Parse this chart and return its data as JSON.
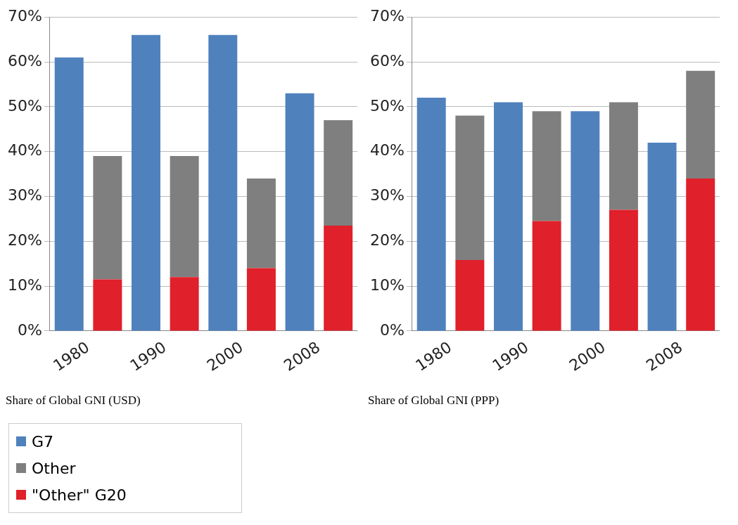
{
  "chart_data": [
    {
      "type": "bar",
      "title": "Share of Global GNI (USD)",
      "categories": [
        "1980",
        null,
        "1990",
        null,
        "2000",
        null,
        "2008",
        null
      ],
      "stacked": true,
      "legend": "bottom left",
      "grid": "y",
      "ylim": [
        0,
        70
      ],
      "yticks": [
        {
          "value": 0,
          "label": "0%"
        },
        {
          "value": 10,
          "label": "10%"
        },
        {
          "value": 20,
          "label": "20%"
        },
        {
          "value": 30,
          "label": "30%"
        },
        {
          "value": 40,
          "label": "40%"
        },
        {
          "value": 50,
          "label": "50%"
        },
        {
          "value": 60,
          "label": "60%"
        },
        {
          "value": 70,
          "label": "70%"
        }
      ],
      "series": [
        {
          "name": "G7",
          "color": "#4f81bd",
          "values": [
            61,
            null,
            66,
            null,
            66,
            null,
            53,
            null
          ]
        },
        {
          "name": "\"Other\" G20",
          "color": "#e0202a",
          "values": [
            null,
            11.5,
            null,
            12,
            null,
            14,
            null,
            23.5
          ]
        },
        {
          "name": "Other",
          "color": "#7f7f7f",
          "values": [
            null,
            27.5,
            null,
            27,
            null,
            20,
            null,
            23.5
          ]
        }
      ]
    },
    {
      "type": "bar",
      "title": "Share of Global GNI (PPP)",
      "categories": [
        "1980",
        null,
        "1990",
        null,
        "2000",
        null,
        "2008",
        null
      ],
      "stacked": true,
      "grid": "y",
      "ylim": [
        0,
        70
      ],
      "yticks": [
        {
          "value": 0,
          "label": "0%"
        },
        {
          "value": 10,
          "label": "10%"
        },
        {
          "value": 20,
          "label": "20%"
        },
        {
          "value": 30,
          "label": "30%"
        },
        {
          "value": 40,
          "label": "40%"
        },
        {
          "value": 50,
          "label": "50%"
        },
        {
          "value": 60,
          "label": "60%"
        },
        {
          "value": 70,
          "label": "70%"
        }
      ],
      "series": [
        {
          "color": "#4f81bd",
          "values": [
            52,
            null,
            51,
            null,
            49,
            null,
            42,
            null
          ]
        },
        {
          "color": "#e0202a",
          "values": [
            null,
            15.8,
            null,
            24.5,
            null,
            27,
            null,
            34
          ]
        },
        {
          "color": "#7f7f7f",
          "values": [
            null,
            32.2,
            null,
            24.5,
            null,
            24,
            null,
            24
          ]
        }
      ]
    }
  ]
}
